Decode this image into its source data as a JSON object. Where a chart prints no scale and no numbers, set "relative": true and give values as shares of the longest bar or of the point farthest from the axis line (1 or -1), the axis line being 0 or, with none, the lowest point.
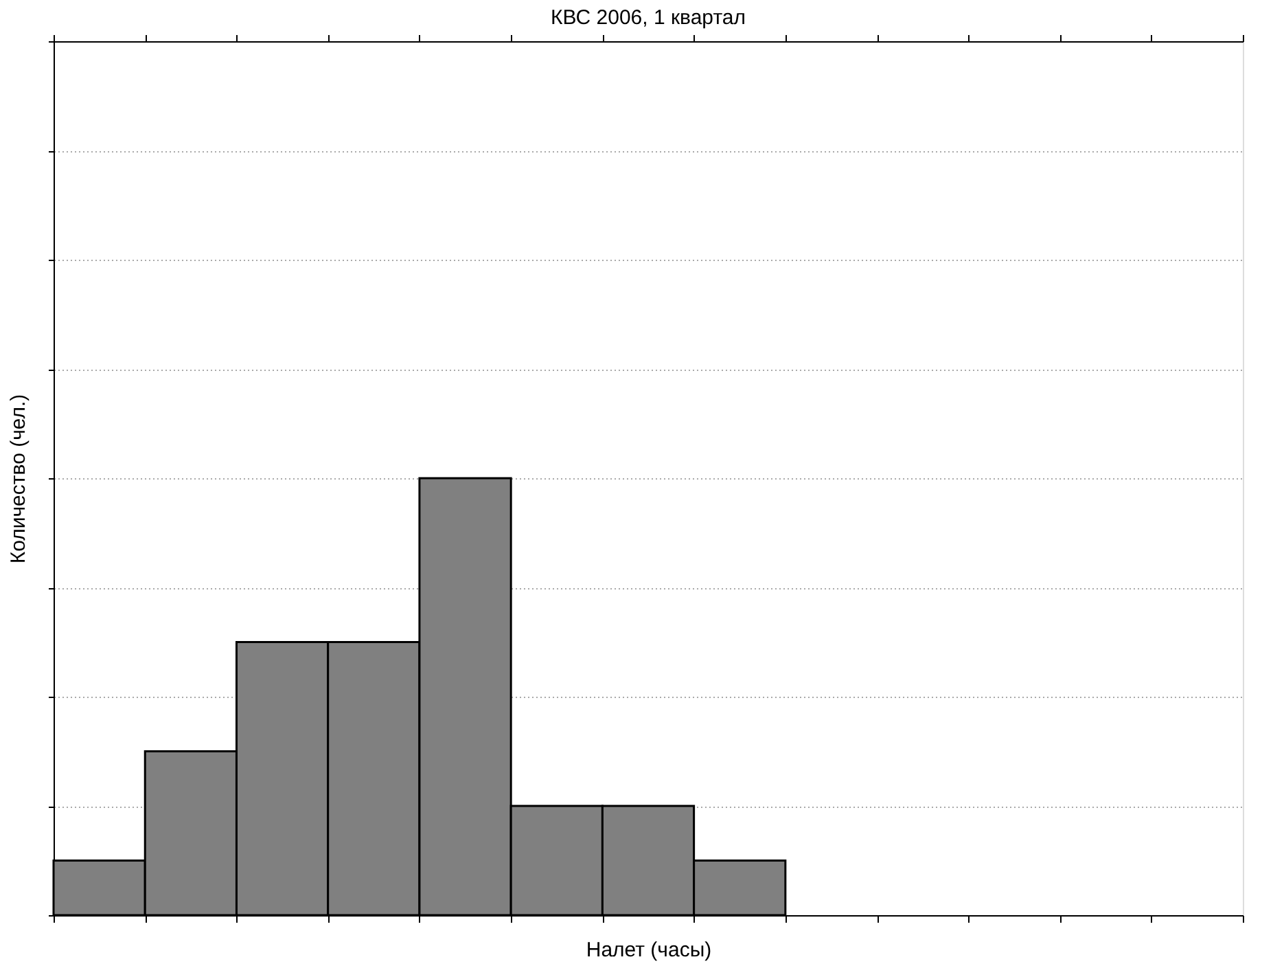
{
  "chart_data": {
    "type": "bar",
    "title": "КВС 2006, 1 квартал",
    "xlabel": "Налет (часы)",
    "ylabel": "Количество (чел.)",
    "categories": [
      null,
      null,
      null,
      null,
      null,
      null,
      null,
      null
    ],
    "values": [
      0.125,
      0.375,
      0.625,
      0.625,
      1,
      0.25,
      0.25,
      0.125
    ],
    "color": "#808080",
    "relative": true,
    "grid": "y",
    "tick_labels": false
  }
}
